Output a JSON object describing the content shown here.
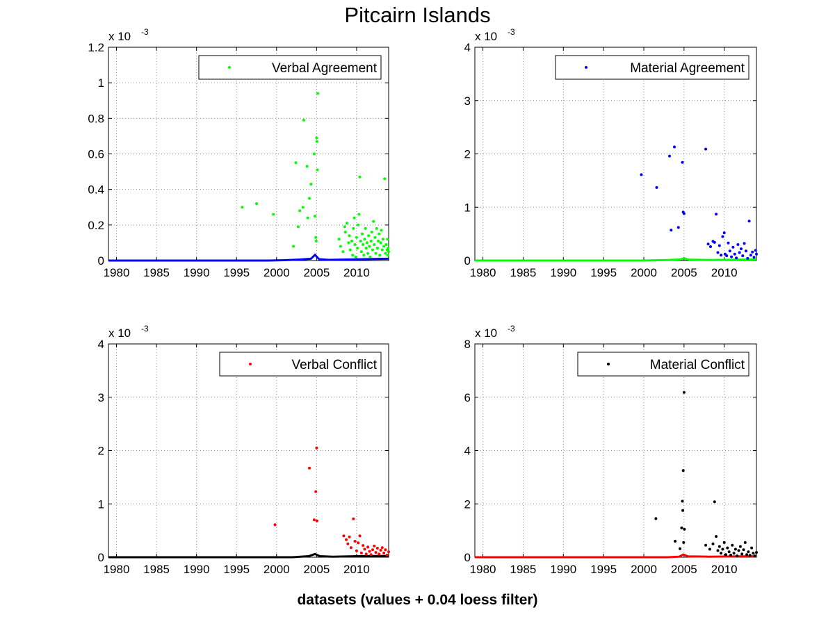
{
  "figure": {
    "title": "Pitcairn Islands",
    "xlabel": "datasets (values + 0.04 loess filter)"
  },
  "chart_data": [
    {
      "type": "scatter",
      "legend": "Verbal Agreement",
      "legend_position": "top-right",
      "color": "#00ff00",
      "smooth_color": "#0000ff",
      "xlim": [
        1979,
        2014
      ],
      "ylim": [
        0,
        1.2
      ],
      "y_scale_label": "x 10",
      "y_scale_exp": "-3",
      "grid": true,
      "xticks": [
        1980,
        1985,
        1990,
        1995,
        2000,
        2005,
        2010
      ],
      "xtick_labels": [
        "1980",
        "1985",
        "1990",
        "1995",
        "2000",
        "2005",
        "2010"
      ],
      "yticks": [
        0,
        0.2,
        0.4,
        0.6,
        0.8,
        1,
        1.2
      ],
      "ytick_labels": [
        "0",
        "0.2",
        "0.4",
        "0.6",
        "0.8",
        "1",
        "1.2"
      ],
      "points": [
        [
          1995.7,
          0.3
        ],
        [
          1997.5,
          0.32
        ],
        [
          1999.6,
          0.26
        ],
        [
          2002.1,
          0.08
        ],
        [
          2002.4,
          0.55
        ],
        [
          2002.7,
          0.19
        ],
        [
          2002.9,
          0.28
        ],
        [
          2003.3,
          0.3
        ],
        [
          2003.4,
          0.79
        ],
        [
          2003.8,
          0.53
        ],
        [
          2003.9,
          0.24
        ],
        [
          2004.1,
          0.35
        ],
        [
          2004.3,
          0.43
        ],
        [
          2004.7,
          0.6
        ],
        [
          2004.8,
          0.25
        ],
        [
          2004.9,
          0.13
        ],
        [
          2004.95,
          0.11
        ],
        [
          2005.0,
          0.69
        ],
        [
          2005.05,
          0.67
        ],
        [
          2005.1,
          0.51
        ],
        [
          2005.15,
          0.94
        ],
        [
          2007.8,
          0.12
        ],
        [
          2008.0,
          0.08
        ],
        [
          2008.3,
          0.05
        ],
        [
          2008.5,
          0.19
        ],
        [
          2008.6,
          0.16
        ],
        [
          2008.8,
          0.21
        ],
        [
          2009.0,
          0.1
        ],
        [
          2009.1,
          0.14
        ],
        [
          2009.2,
          0.06
        ],
        [
          2009.4,
          0.11
        ],
        [
          2009.5,
          0.03
        ],
        [
          2009.6,
          0.18
        ],
        [
          2009.7,
          0.24
        ],
        [
          2009.8,
          0.09
        ],
        [
          2009.9,
          0.02
        ],
        [
          2010.0,
          0.13
        ],
        [
          2010.1,
          0.07
        ],
        [
          2010.2,
          0.2
        ],
        [
          2010.3,
          0.26
        ],
        [
          2010.4,
          0.47
        ],
        [
          2010.5,
          0.11
        ],
        [
          2010.6,
          0.05
        ],
        [
          2010.7,
          0.15
        ],
        [
          2010.8,
          0.09
        ],
        [
          2010.9,
          0.03
        ],
        [
          2011.0,
          0.12
        ],
        [
          2011.1,
          0.18
        ],
        [
          2011.2,
          0.07
        ],
        [
          2011.3,
          0.1
        ],
        [
          2011.4,
          0.04
        ],
        [
          2011.5,
          0.14
        ],
        [
          2011.6,
          0.08
        ],
        [
          2011.7,
          0.02
        ],
        [
          2011.8,
          0.11
        ],
        [
          2011.9,
          0.16
        ],
        [
          2012.0,
          0.06
        ],
        [
          2012.1,
          0.22
        ],
        [
          2012.2,
          0.09
        ],
        [
          2012.3,
          0.13
        ],
        [
          2012.4,
          0.04
        ],
        [
          2012.5,
          0.18
        ],
        [
          2012.6,
          0.07
        ],
        [
          2012.7,
          0.11
        ],
        [
          2012.8,
          0.15
        ],
        [
          2012.9,
          0.03
        ],
        [
          2013.0,
          0.1
        ],
        [
          2013.1,
          0.17
        ],
        [
          2013.2,
          0.06
        ],
        [
          2013.3,
          0.12
        ],
        [
          2013.4,
          0.08
        ],
        [
          2013.5,
          0.46
        ],
        [
          2013.6,
          0.04
        ],
        [
          2013.7,
          0.09
        ],
        [
          2013.8,
          0.06
        ],
        [
          2013.9,
          0.03
        ],
        [
          2014.0,
          0.05
        ],
        [
          2013.85,
          0.12
        ],
        [
          2013.95,
          0.07
        ]
      ],
      "smooth": [
        [
          1979,
          0.0
        ],
        [
          1999,
          0.0
        ],
        [
          2001,
          0.002
        ],
        [
          2003,
          0.006
        ],
        [
          2004.3,
          0.01
        ],
        [
          2004.8,
          0.032
        ],
        [
          2005.3,
          0.008
        ],
        [
          2006.5,
          0.004
        ],
        [
          2009,
          0.006
        ],
        [
          2012,
          0.009
        ],
        [
          2014,
          0.01
        ]
      ]
    },
    {
      "type": "scatter",
      "legend": "Material Agreement",
      "legend_position": "top-right",
      "color": "#0000ff",
      "smooth_color": "#00ff00",
      "xlim": [
        1979,
        2014
      ],
      "ylim": [
        0,
        4
      ],
      "y_scale_label": "x 10",
      "y_scale_exp": "-3",
      "grid": true,
      "xticks": [
        1980,
        1985,
        1990,
        1995,
        2000,
        2005,
        2010
      ],
      "xtick_labels": [
        "1980",
        "1985",
        "1990",
        "1995",
        "2000",
        "2005",
        "2010"
      ],
      "yticks": [
        0,
        1,
        2,
        3,
        4
      ],
      "ytick_labels": [
        "0",
        "1",
        "2",
        "3",
        "4"
      ],
      "points": [
        [
          1999.7,
          1.61
        ],
        [
          2001.6,
          1.37
        ],
        [
          2003.2,
          1.96
        ],
        [
          2003.4,
          0.57
        ],
        [
          2003.8,
          2.13
        ],
        [
          2004.3,
          0.62
        ],
        [
          2004.8,
          1.84
        ],
        [
          2004.9,
          0.91
        ],
        [
          2005.0,
          0.88
        ],
        [
          2007.7,
          2.09
        ],
        [
          2008.0,
          0.31
        ],
        [
          2008.3,
          0.26
        ],
        [
          2008.6,
          0.36
        ],
        [
          2008.8,
          0.34
        ],
        [
          2009.0,
          0.87
        ],
        [
          2009.2,
          0.15
        ],
        [
          2009.4,
          0.28
        ],
        [
          2009.6,
          0.1
        ],
        [
          2009.8,
          0.45
        ],
        [
          2010.0,
          0.52
        ],
        [
          2010.1,
          0.12
        ],
        [
          2010.3,
          0.09
        ],
        [
          2010.5,
          0.33
        ],
        [
          2010.7,
          0.18
        ],
        [
          2010.9,
          0.07
        ],
        [
          2011.1,
          0.25
        ],
        [
          2011.3,
          0.12
        ],
        [
          2011.5,
          0.05
        ],
        [
          2011.7,
          0.3
        ],
        [
          2011.9,
          0.15
        ],
        [
          2012.1,
          0.22
        ],
        [
          2012.3,
          0.09
        ],
        [
          2012.5,
          0.32
        ],
        [
          2012.7,
          0.18
        ],
        [
          2012.9,
          0.04
        ],
        [
          2013.1,
          0.74
        ],
        [
          2013.3,
          0.1
        ],
        [
          2013.5,
          0.16
        ],
        [
          2013.7,
          0.06
        ],
        [
          2013.9,
          0.19
        ],
        [
          2014.0,
          0.12
        ]
      ],
      "smooth": [
        [
          1979,
          0.0
        ],
        [
          2000,
          0.0
        ],
        [
          2003,
          0.01
        ],
        [
          2004.5,
          0.02
        ],
        [
          2005,
          0.04
        ],
        [
          2005.6,
          0.015
        ],
        [
          2008,
          0.01
        ],
        [
          2012,
          0.015
        ],
        [
          2014,
          0.02
        ]
      ]
    },
    {
      "type": "scatter",
      "legend": "Verbal Conflict",
      "legend_position": "top-right",
      "color": "#ff0000",
      "smooth_color": "#000000",
      "xlim": [
        1979,
        2014
      ],
      "ylim": [
        0,
        4
      ],
      "y_scale_label": "x 10",
      "y_scale_exp": "-3",
      "grid": true,
      "xticks": [
        1980,
        1985,
        1990,
        1995,
        2000,
        2005,
        2010
      ],
      "xtick_labels": [
        "1980",
        "1985",
        "1990",
        "1995",
        "2000",
        "2005",
        "2010"
      ],
      "yticks": [
        0,
        1,
        2,
        3,
        4
      ],
      "ytick_labels": [
        "0",
        "1",
        "2",
        "3",
        "4"
      ],
      "points": [
        [
          1999.8,
          0.61
        ],
        [
          2004.1,
          1.67
        ],
        [
          2004.7,
          0.7
        ],
        [
          2004.9,
          1.23
        ],
        [
          2005.0,
          2.05
        ],
        [
          2005.05,
          0.68
        ],
        [
          2008.4,
          0.4
        ],
        [
          2008.7,
          0.33
        ],
        [
          2008.9,
          0.25
        ],
        [
          2009.1,
          0.38
        ],
        [
          2009.3,
          0.18
        ],
        [
          2009.6,
          0.72
        ],
        [
          2009.8,
          0.3
        ],
        [
          2010.0,
          0.12
        ],
        [
          2010.2,
          0.27
        ],
        [
          2010.4,
          0.4
        ],
        [
          2010.6,
          0.08
        ],
        [
          2010.8,
          0.22
        ],
        [
          2011.0,
          0.15
        ],
        [
          2011.2,
          0.06
        ],
        [
          2011.4,
          0.19
        ],
        [
          2011.6,
          0.11
        ],
        [
          2011.8,
          0.05
        ],
        [
          2012.0,
          0.14
        ],
        [
          2012.2,
          0.21
        ],
        [
          2012.4,
          0.09
        ],
        [
          2012.6,
          0.17
        ],
        [
          2012.8,
          0.06
        ],
        [
          2013.0,
          0.13
        ],
        [
          2013.2,
          0.18
        ],
        [
          2013.4,
          0.08
        ],
        [
          2013.6,
          0.14
        ],
        [
          2013.8,
          0.04
        ],
        [
          2014.0,
          0.1
        ]
      ],
      "smooth": [
        [
          1979,
          0.0
        ],
        [
          2002,
          0.0
        ],
        [
          2004,
          0.02
        ],
        [
          2004.8,
          0.06
        ],
        [
          2005.4,
          0.02
        ],
        [
          2007,
          0.01
        ],
        [
          2010,
          0.02
        ],
        [
          2014,
          0.025
        ]
      ]
    },
    {
      "type": "scatter",
      "legend": "Material Conflict",
      "legend_position": "top-right",
      "color": "#000000",
      "smooth_color": "#ff0000",
      "xlim": [
        1979,
        2014
      ],
      "ylim": [
        0,
        8
      ],
      "y_scale_label": "x 10",
      "y_scale_exp": "-3",
      "grid": true,
      "xticks": [
        1980,
        1985,
        1990,
        1995,
        2000,
        2005,
        2010
      ],
      "xtick_labels": [
        "1980",
        "1985",
        "1990",
        "1995",
        "2000",
        "2005",
        "2010"
      ],
      "yticks": [
        0,
        2,
        4,
        6,
        8
      ],
      "ytick_labels": [
        "0",
        "2",
        "4",
        "6",
        "8"
      ],
      "points": [
        [
          2001.5,
          1.45
        ],
        [
          2003.9,
          0.6
        ],
        [
          2004.5,
          0.32
        ],
        [
          2004.7,
          1.1
        ],
        [
          2004.8,
          2.1
        ],
        [
          2004.85,
          1.75
        ],
        [
          2004.9,
          3.25
        ],
        [
          2004.95,
          0.55
        ],
        [
          2005.0,
          6.18
        ],
        [
          2005.05,
          1.05
        ],
        [
          2007.7,
          0.45
        ],
        [
          2008.2,
          0.3
        ],
        [
          2008.6,
          0.5
        ],
        [
          2008.8,
          2.08
        ],
        [
          2009.0,
          0.78
        ],
        [
          2009.2,
          0.25
        ],
        [
          2009.4,
          0.4
        ],
        [
          2009.6,
          0.15
        ],
        [
          2009.8,
          0.3
        ],
        [
          2010.0,
          0.55
        ],
        [
          2010.2,
          0.1
        ],
        [
          2010.4,
          0.35
        ],
        [
          2010.6,
          0.2
        ],
        [
          2010.8,
          0.08
        ],
        [
          2011.0,
          0.45
        ],
        [
          2011.2,
          0.15
        ],
        [
          2011.4,
          0.3
        ],
        [
          2011.6,
          0.05
        ],
        [
          2011.8,
          0.25
        ],
        [
          2012.0,
          0.4
        ],
        [
          2012.2,
          0.12
        ],
        [
          2012.4,
          0.28
        ],
        [
          2012.6,
          0.55
        ],
        [
          2012.8,
          0.1
        ],
        [
          2013.0,
          0.2
        ],
        [
          2013.2,
          0.07
        ],
        [
          2013.4,
          0.35
        ],
        [
          2013.6,
          0.15
        ],
        [
          2013.8,
          0.05
        ],
        [
          2014.0,
          0.18
        ]
      ],
      "smooth": [
        [
          1979,
          0.0
        ],
        [
          2003,
          0.0
        ],
        [
          2004.4,
          0.02
        ],
        [
          2004.9,
          0.1
        ],
        [
          2005.5,
          0.03
        ],
        [
          2008,
          0.02
        ],
        [
          2012,
          0.03
        ],
        [
          2014,
          0.03
        ]
      ]
    }
  ]
}
